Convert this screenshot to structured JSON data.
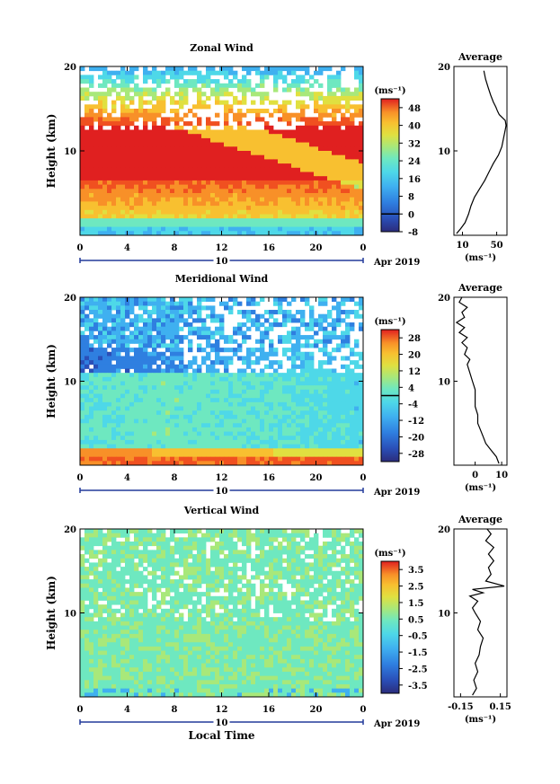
{
  "chart_data": [
    {
      "type": "heatmap",
      "title": "Zonal Wind",
      "ylabel": "Height (km)",
      "xlabel": "",
      "xticks": [
        "0",
        "4",
        "8",
        "12",
        "16",
        "20",
        "0"
      ],
      "yticks": [
        "20",
        "10"
      ],
      "xlim": [
        0,
        24
      ],
      "ylim": [
        0,
        20
      ],
      "date_label": "10",
      "month_label": "Apr 2019",
      "colorbar": {
        "unit": "(ms⁻¹)",
        "ticks": [
          "48",
          "40",
          "32",
          "24",
          "16",
          "8",
          "0",
          "-8"
        ],
        "range": [
          -8,
          52
        ],
        "zero_line": 0
      },
      "average": {
        "title": "Average",
        "xticks": [
          "10",
          "50"
        ],
        "xlim": [
          0,
          62
        ],
        "unit": "(ms⁻¹)",
        "yticks": [
          "20",
          "10"
        ],
        "profile": [
          [
            3,
            0.2
          ],
          [
            8,
            0.8
          ],
          [
            13,
            1.5
          ],
          [
            17,
            2.5
          ],
          [
            20,
            3.5
          ],
          [
            24,
            4.5
          ],
          [
            30,
            5.5
          ],
          [
            36,
            6.5
          ],
          [
            41,
            7.5
          ],
          [
            46,
            8.5
          ],
          [
            52,
            9.5
          ],
          [
            56,
            10.5
          ],
          [
            58,
            11.5
          ],
          [
            60,
            12.5
          ],
          [
            61,
            13
          ],
          [
            60,
            13.6
          ],
          [
            56,
            14
          ],
          [
            53,
            14.3
          ],
          [
            51,
            14.7
          ],
          [
            49,
            15.2
          ],
          [
            46,
            15.8
          ],
          [
            43,
            16.6
          ],
          [
            40,
            17.5
          ],
          [
            37,
            18.5
          ],
          [
            35,
            19.5
          ]
        ]
      }
    },
    {
      "type": "heatmap",
      "title": "Meridional Wind",
      "ylabel": "Height (km)",
      "xlabel": "",
      "xticks": [
        "0",
        "4",
        "8",
        "12",
        "16",
        "20",
        "0"
      ],
      "yticks": [
        "20",
        "10"
      ],
      "xlim": [
        0,
        24
      ],
      "ylim": [
        0,
        20
      ],
      "date_label": "10",
      "month_label": "Apr 2019",
      "colorbar": {
        "unit": "(ms⁻¹)",
        "ticks": [
          "28",
          "20",
          "12",
          "4",
          "-4",
          "-12",
          "-20",
          "-28"
        ],
        "range": [
          -32,
          32
        ],
        "zero_line": 0
      },
      "average": {
        "title": "Average",
        "xticks": [
          "0",
          "10"
        ],
        "xlim": [
          -8,
          12
        ],
        "unit": "(ms⁻¹)",
        "yticks": [
          "20",
          "10"
        ],
        "profile": [
          [
            9,
            0.2
          ],
          [
            8,
            1
          ],
          [
            6,
            1.8
          ],
          [
            4,
            2.6
          ],
          [
            3,
            3.4
          ],
          [
            2,
            4.2
          ],
          [
            1,
            5
          ],
          [
            1,
            6
          ],
          [
            0,
            7
          ],
          [
            0,
            8
          ],
          [
            0,
            9
          ],
          [
            -1,
            10
          ],
          [
            -2,
            11
          ],
          [
            -3,
            12
          ],
          [
            -2,
            12.6
          ],
          [
            -4,
            13.2
          ],
          [
            -3,
            14
          ],
          [
            -5,
            14.6
          ],
          [
            -3,
            15.2
          ],
          [
            -6,
            15.8
          ],
          [
            -4,
            16.4
          ],
          [
            -7,
            17
          ],
          [
            -4,
            17.6
          ],
          [
            -5,
            18.2
          ],
          [
            -3,
            18.8
          ],
          [
            -6,
            19.4
          ],
          [
            -5,
            20
          ]
        ]
      }
    },
    {
      "type": "heatmap",
      "title": "Vertical Wind",
      "ylabel": "Height (km)",
      "xlabel": "Local Time",
      "xticks": [
        "0",
        "4",
        "8",
        "12",
        "16",
        "20",
        "0"
      ],
      "yticks": [
        "20",
        "10"
      ],
      "xlim": [
        0,
        24
      ],
      "ylim": [
        0,
        20
      ],
      "date_label": "10",
      "month_label": "Apr 2019",
      "colorbar": {
        "unit": "(ms⁻¹)",
        "ticks": [
          "3.5",
          "2.5",
          "1.5",
          "0.5",
          "-0.5",
          "-1.5",
          "-2.5",
          "-3.5"
        ],
        "range": [
          -4,
          4
        ],
        "zero_line": null
      },
      "average": {
        "title": "Average",
        "xticks": [
          "-0.15",
          "0.15"
        ],
        "xlim": [
          -0.2,
          0.2
        ],
        "unit": "(ms⁻¹)",
        "yticks": [
          "20",
          "10"
        ],
        "profile": [
          [
            -0.06,
            0.2
          ],
          [
            -0.03,
            1
          ],
          [
            -0.05,
            2
          ],
          [
            -0.02,
            3
          ],
          [
            -0.04,
            4
          ],
          [
            -0.01,
            5
          ],
          [
            0.0,
            6
          ],
          [
            0.02,
            7
          ],
          [
            -0.02,
            8
          ],
          [
            0.0,
            9
          ],
          [
            -0.04,
            10
          ],
          [
            -0.06,
            10.6
          ],
          [
            -0.02,
            11.4
          ],
          [
            -0.08,
            12
          ],
          [
            0.02,
            12.4
          ],
          [
            -0.06,
            12.8
          ],
          [
            0.18,
            13.2
          ],
          [
            0.04,
            13.8
          ],
          [
            0.08,
            14.6
          ],
          [
            0.06,
            15.4
          ],
          [
            0.1,
            16.2
          ],
          [
            0.06,
            17
          ],
          [
            0.1,
            17.8
          ],
          [
            0.04,
            18.6
          ],
          [
            0.08,
            19.4
          ],
          [
            0.05,
            20
          ]
        ]
      }
    }
  ],
  "colors": {
    "scale": [
      "#2b2c7c",
      "#2a4fb8",
      "#2f7fe0",
      "#3fb0f0",
      "#4ed8e8",
      "#6ee8c0",
      "#a8e87a",
      "#e0e040",
      "#f8c030",
      "#f89028",
      "#f05020",
      "#e02020"
    ]
  }
}
